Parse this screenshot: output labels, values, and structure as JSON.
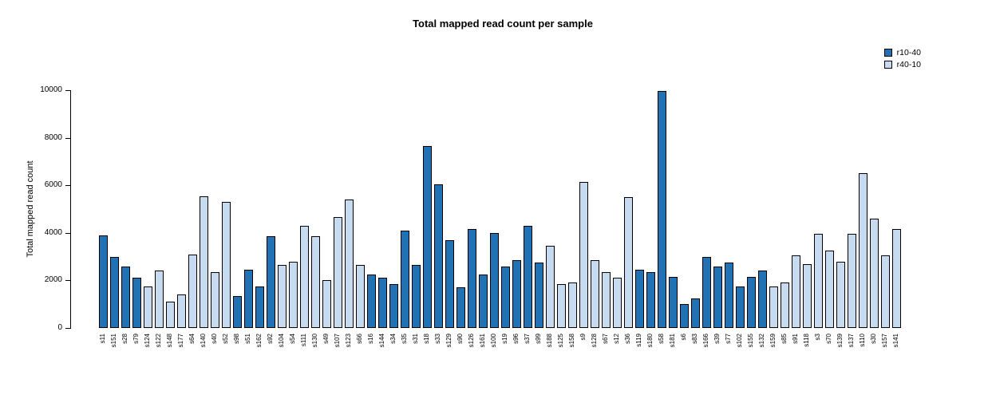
{
  "title": "Total mapped read count per sample",
  "legend": [
    {
      "label": "r10-40",
      "group": "r10-40",
      "color": "#2171B5"
    },
    {
      "label": "r40-10",
      "group": "r40-10",
      "color": "#C6DBEF"
    }
  ],
  "chart_data": {
    "type": "bar",
    "title": "Total mapped read count per sample",
    "xlabel": "",
    "ylabel": "Total mapped read count",
    "ylim": [
      0,
      10000
    ],
    "yticks": [
      0,
      2000,
      4000,
      6000,
      8000,
      10000
    ],
    "grid": false,
    "legend_position": "top-right",
    "bar_border_color": "#000000",
    "series_colors": {
      "r10-40": "#2171B5",
      "r40-10": "#C6DBEF"
    },
    "samples": [
      {
        "label": "s11",
        "value": 3900,
        "group": "r10-40"
      },
      {
        "label": "s151",
        "value": 3000,
        "group": "r10-40"
      },
      {
        "label": "s28",
        "value": 2600,
        "group": "r10-40"
      },
      {
        "label": "s79",
        "value": 2100,
        "group": "r10-40"
      },
      {
        "label": "s124",
        "value": 1750,
        "group": "r40-10"
      },
      {
        "label": "s122",
        "value": 2400,
        "group": "r40-10"
      },
      {
        "label": "s148",
        "value": 1100,
        "group": "r40-10"
      },
      {
        "label": "s177",
        "value": 1400,
        "group": "r40-10"
      },
      {
        "label": "s64",
        "value": 3100,
        "group": "r40-10"
      },
      {
        "label": "s140",
        "value": 5550,
        "group": "r40-10"
      },
      {
        "label": "s40",
        "value": 2350,
        "group": "r40-10"
      },
      {
        "label": "s52",
        "value": 5300,
        "group": "r40-10"
      },
      {
        "label": "s98",
        "value": 1350,
        "group": "r10-40"
      },
      {
        "label": "s51",
        "value": 2450,
        "group": "r10-40"
      },
      {
        "label": "s162",
        "value": 1750,
        "group": "r10-40"
      },
      {
        "label": "s92",
        "value": 3850,
        "group": "r10-40"
      },
      {
        "label": "s104",
        "value": 2650,
        "group": "r40-10"
      },
      {
        "label": "s54",
        "value": 2800,
        "group": "r40-10"
      },
      {
        "label": "s111",
        "value": 4300,
        "group": "r40-10"
      },
      {
        "label": "s130",
        "value": 3850,
        "group": "r40-10"
      },
      {
        "label": "s49",
        "value": 2000,
        "group": "r40-10"
      },
      {
        "label": "s107",
        "value": 4650,
        "group": "r40-10"
      },
      {
        "label": "s123",
        "value": 5400,
        "group": "r40-10"
      },
      {
        "label": "s66",
        "value": 2650,
        "group": "r40-10"
      },
      {
        "label": "s16",
        "value": 2250,
        "group": "r10-40"
      },
      {
        "label": "s144",
        "value": 2100,
        "group": "r10-40"
      },
      {
        "label": "s34",
        "value": 1850,
        "group": "r10-40"
      },
      {
        "label": "s35",
        "value": 4100,
        "group": "r10-40"
      },
      {
        "label": "s31",
        "value": 2650,
        "group": "r10-40"
      },
      {
        "label": "s18",
        "value": 7650,
        "group": "r10-40"
      },
      {
        "label": "s33",
        "value": 6050,
        "group": "r10-40"
      },
      {
        "label": "s129",
        "value": 3700,
        "group": "r10-40"
      },
      {
        "label": "s90",
        "value": 1700,
        "group": "r10-40"
      },
      {
        "label": "s126",
        "value": 4150,
        "group": "r10-40"
      },
      {
        "label": "s161",
        "value": 2250,
        "group": "r10-40"
      },
      {
        "label": "s100",
        "value": 4000,
        "group": "r10-40"
      },
      {
        "label": "s19",
        "value": 2600,
        "group": "r10-40"
      },
      {
        "label": "s96",
        "value": 2850,
        "group": "r10-40"
      },
      {
        "label": "s37",
        "value": 4300,
        "group": "r10-40"
      },
      {
        "label": "s99",
        "value": 2750,
        "group": "r10-40"
      },
      {
        "label": "s188",
        "value": 3450,
        "group": "r40-10"
      },
      {
        "label": "s125",
        "value": 1850,
        "group": "r40-10"
      },
      {
        "label": "s158",
        "value": 1900,
        "group": "r40-10"
      },
      {
        "label": "s9",
        "value": 6150,
        "group": "r40-10"
      },
      {
        "label": "s128",
        "value": 2850,
        "group": "r40-10"
      },
      {
        "label": "s67",
        "value": 2350,
        "group": "r40-10"
      },
      {
        "label": "s12",
        "value": 2100,
        "group": "r40-10"
      },
      {
        "label": "s36",
        "value": 5500,
        "group": "r40-10"
      },
      {
        "label": "s119",
        "value": 2450,
        "group": "r10-40"
      },
      {
        "label": "s180",
        "value": 2350,
        "group": "r10-40"
      },
      {
        "label": "s58",
        "value": 9950,
        "group": "r10-40"
      },
      {
        "label": "s181",
        "value": 2150,
        "group": "r10-40"
      },
      {
        "label": "s6",
        "value": 1000,
        "group": "r10-40"
      },
      {
        "label": "s83",
        "value": 1250,
        "group": "r10-40"
      },
      {
        "label": "s166",
        "value": 3000,
        "group": "r10-40"
      },
      {
        "label": "s39",
        "value": 2600,
        "group": "r10-40"
      },
      {
        "label": "s77",
        "value": 2750,
        "group": "r10-40"
      },
      {
        "label": "s102",
        "value": 1750,
        "group": "r10-40"
      },
      {
        "label": "s155",
        "value": 2150,
        "group": "r10-40"
      },
      {
        "label": "s132",
        "value": 2400,
        "group": "r10-40"
      },
      {
        "label": "s159",
        "value": 1750,
        "group": "r40-10"
      },
      {
        "label": "s85",
        "value": 1900,
        "group": "r40-10"
      },
      {
        "label": "s91",
        "value": 3050,
        "group": "r40-10"
      },
      {
        "label": "s118",
        "value": 2700,
        "group": "r40-10"
      },
      {
        "label": "s3",
        "value": 3950,
        "group": "r40-10"
      },
      {
        "label": "s70",
        "value": 3250,
        "group": "r40-10"
      },
      {
        "label": "s139",
        "value": 2800,
        "group": "r40-10"
      },
      {
        "label": "s137",
        "value": 3950,
        "group": "r40-10"
      },
      {
        "label": "s110",
        "value": 6500,
        "group": "r40-10"
      },
      {
        "label": "s30",
        "value": 4600,
        "group": "r40-10"
      },
      {
        "label": "s157",
        "value": 3050,
        "group": "r40-10"
      },
      {
        "label": "s141",
        "value": 4150,
        "group": "r40-10"
      }
    ]
  }
}
